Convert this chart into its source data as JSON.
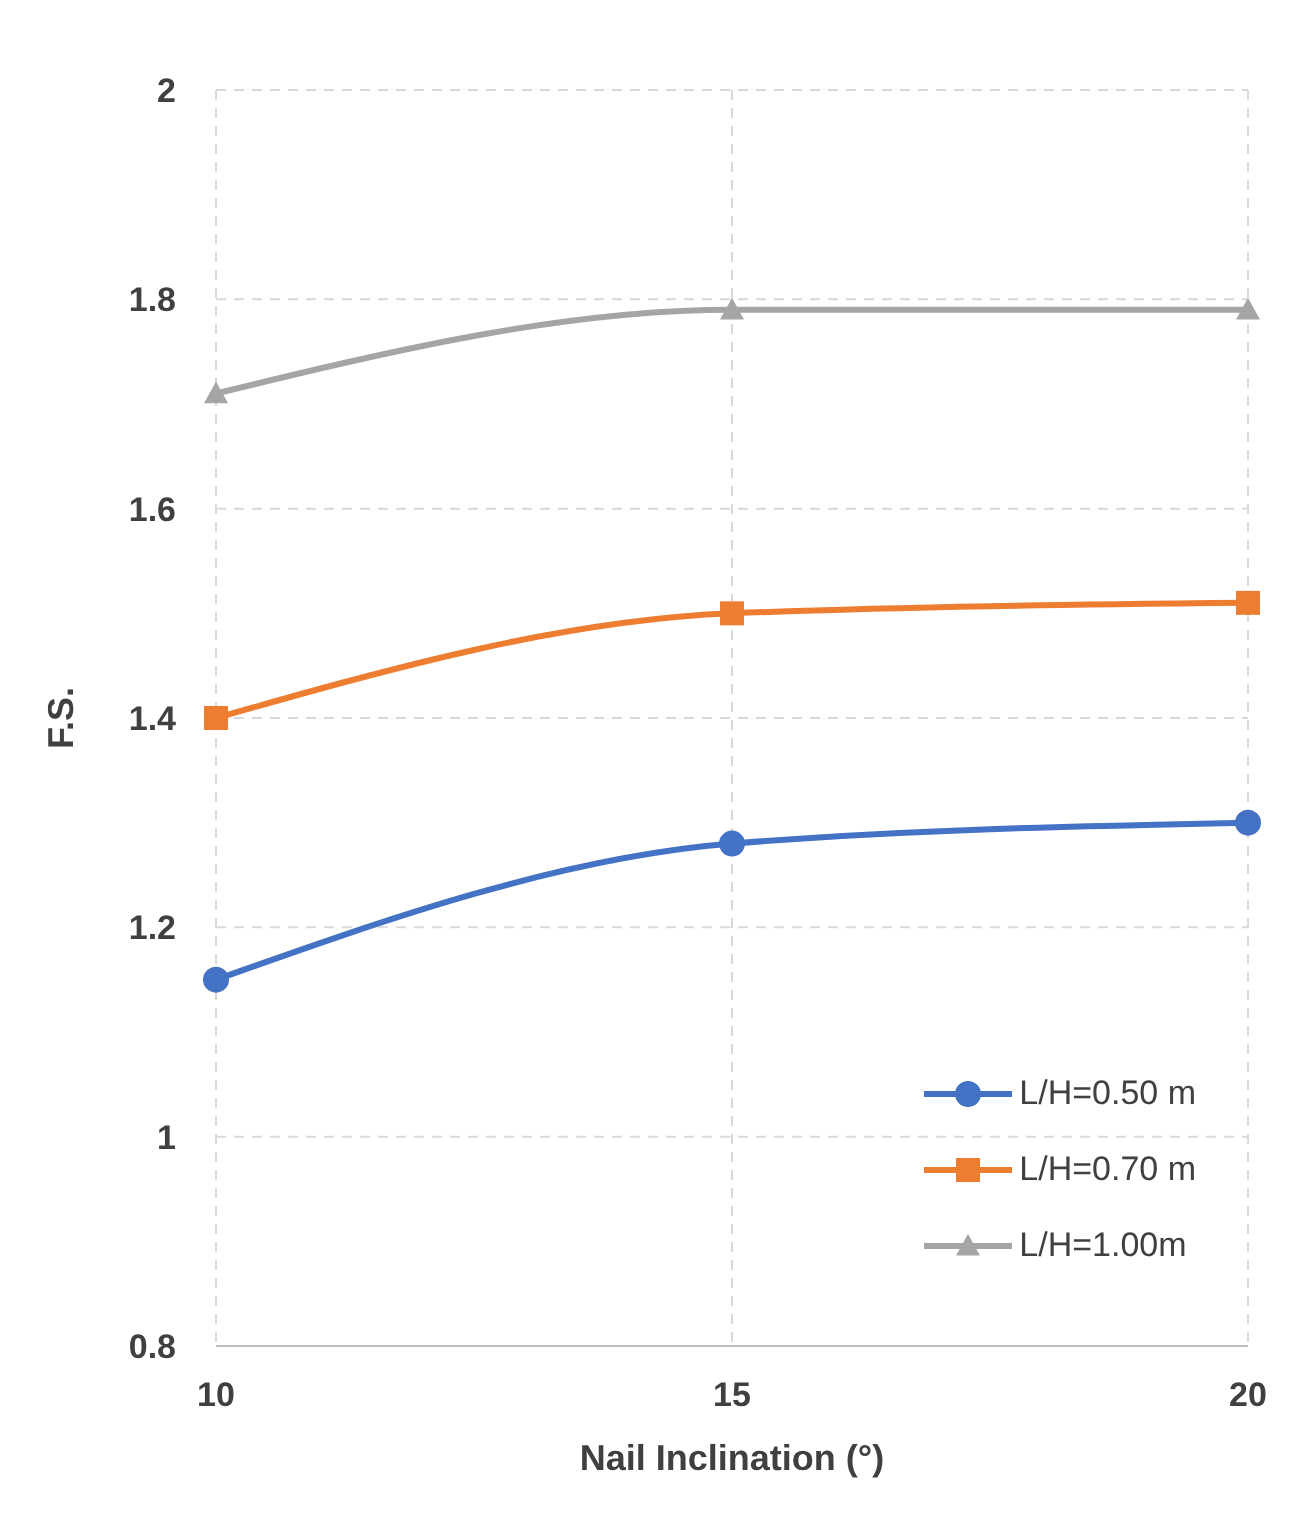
{
  "chart_data": {
    "type": "line",
    "xlabel": "Nail Inclination  (°)",
    "ylabel": "F.S.",
    "x": [
      10,
      15,
      20
    ],
    "series": [
      {
        "name": "L/H=0.50 m",
        "color": "#4472c4",
        "marker": "circle",
        "values": [
          1.15,
          1.28,
          1.3
        ]
      },
      {
        "name": "L/H=0.70 m",
        "color": "#ed7d31",
        "marker": "square",
        "values": [
          1.4,
          1.5,
          1.51
        ]
      },
      {
        "name": "L/H=1.00m",
        "color": "#a5a5a5",
        "marker": "triangle",
        "values": [
          1.71,
          1.79,
          1.79
        ]
      }
    ],
    "xlim": [
      10,
      20
    ],
    "xticks": [
      10,
      15,
      20
    ],
    "ylim": [
      0.8,
      2
    ],
    "yticks": [
      0.8,
      1,
      1.2,
      1.4,
      1.6,
      1.8,
      2
    ],
    "grid": true,
    "legend": "bottom right",
    "line_style": "solid"
  }
}
